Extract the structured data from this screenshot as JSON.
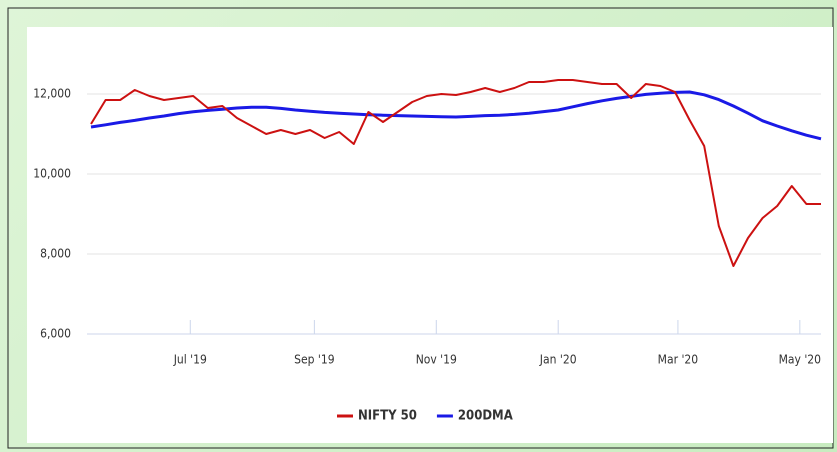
{
  "chart_data": {
    "type": "line",
    "x": [
      2019.36,
      2019.38,
      2019.4,
      2019.42,
      2019.44,
      2019.46,
      2019.48,
      2019.5,
      2019.52,
      2019.54,
      2019.56,
      2019.58,
      2019.6,
      2019.62,
      2019.64,
      2019.66,
      2019.68,
      2019.7,
      2019.72,
      2019.74,
      2019.76,
      2019.78,
      2019.8,
      2019.82,
      2019.84,
      2019.86,
      2019.88,
      2019.9,
      2019.92,
      2019.94,
      2019.96,
      2019.98,
      2020.0,
      2020.02,
      2020.04,
      2020.06,
      2020.08,
      2020.1,
      2020.12,
      2020.14,
      2020.16,
      2020.18,
      2020.2,
      2020.22,
      2020.24,
      2020.26,
      2020.28,
      2020.3,
      2020.32,
      2020.34,
      2020.36
    ],
    "series": [
      {
        "name": "NIFTY 50",
        "color": "#cc1111",
        "values": [
          11250,
          11850,
          11850,
          12100,
          11950,
          11850,
          11900,
          11950,
          11650,
          11700,
          11400,
          11200,
          11000,
          11100,
          11000,
          11100,
          10900,
          11050,
          10750,
          11550,
          11300,
          11550,
          11800,
          11950,
          12000,
          11975,
          12050,
          12150,
          12050,
          12150,
          12300,
          12300,
          12350,
          12350,
          12300,
          12250,
          12250,
          11900,
          12250,
          12200,
          12050,
          11350,
          10700,
          8700,
          7700,
          8400,
          8900,
          9200,
          9700,
          9250,
          9250
        ]
      },
      {
        "name": "200DMA",
        "color": "#1a1ae6",
        "values": [
          11175,
          11230,
          11290,
          11340,
          11400,
          11450,
          11510,
          11555,
          11590,
          11620,
          11650,
          11670,
          11670,
          11640,
          11600,
          11570,
          11540,
          11520,
          11500,
          11480,
          11470,
          11460,
          11450,
          11440,
          11430,
          11425,
          11440,
          11460,
          11470,
          11490,
          11520,
          11560,
          11600,
          11680,
          11760,
          11830,
          11890,
          11940,
          11990,
          12020,
          12040,
          12050,
          11980,
          11860,
          11700,
          11520,
          11330,
          11200,
          11080,
          10970,
          10880
        ]
      }
    ],
    "xlim": [
      2019.36,
      2020.36
    ],
    "xticks": [
      {
        "value": 2019.496,
        "label": "Jul '19"
      },
      {
        "value": 2019.666,
        "label": "Sep '19"
      },
      {
        "value": 2019.833,
        "label": "Nov '19"
      },
      {
        "value": 2020,
        "label": "Jan '20"
      },
      {
        "value": 2020.164,
        "label": "Mar '20"
      },
      {
        "value": 2020.331,
        "label": "May '20"
      }
    ],
    "ylim": [
      6000,
      13000
    ],
    "yticks": [
      {
        "value": 6000,
        "label": "6,000"
      },
      {
        "value": 8000,
        "label": "8,000"
      },
      {
        "value": 10000,
        "label": "10,000"
      },
      {
        "value": 12000,
        "label": "12,000"
      }
    ],
    "grid": true,
    "legend": "bottom"
  }
}
